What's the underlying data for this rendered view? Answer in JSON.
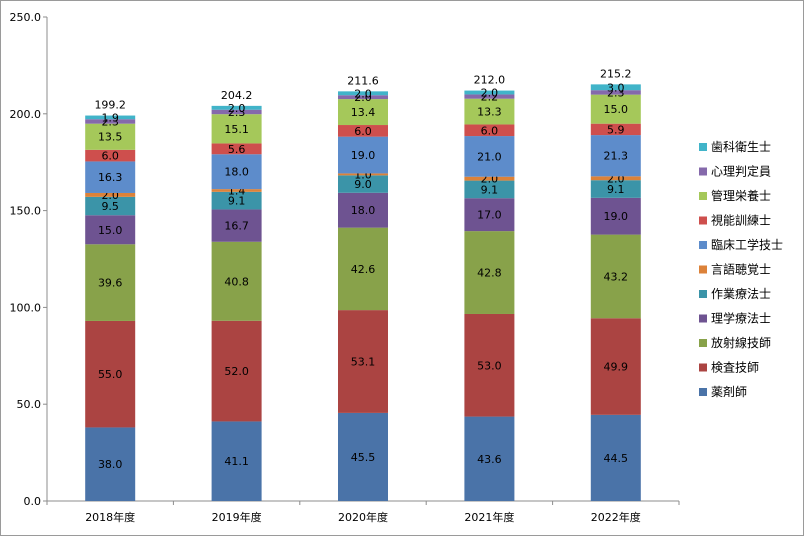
{
  "chart_data": {
    "type": "bar",
    "stacked": true,
    "categories": [
      "2018年度",
      "2019年度",
      "2020年度",
      "2021年度",
      "2022年度"
    ],
    "ylim": [
      0,
      250
    ],
    "yticks": [
      "0.0",
      "50.0",
      "100.0",
      "150.0",
      "200.0",
      "250.0"
    ],
    "grid": false,
    "legend": "right",
    "totals": [
      "199.2",
      "204.2",
      "211.6",
      "212.0",
      "215.2"
    ],
    "series": [
      {
        "name": "薬剤師",
        "color": "#4a73a8",
        "values": [
          38.0,
          41.1,
          45.5,
          43.6,
          44.5
        ],
        "labels": [
          "38.0",
          "41.1",
          "45.5",
          "43.6",
          "44.5"
        ]
      },
      {
        "name": "検査技師",
        "color": "#ab4442",
        "values": [
          55.0,
          52.0,
          53.1,
          53.0,
          49.9
        ],
        "labels": [
          "55.0",
          "52.0",
          "53.1",
          "53.0",
          "49.9"
        ]
      },
      {
        "name": "放射線技師",
        "color": "#88a24a",
        "values": [
          39.6,
          40.8,
          42.6,
          42.8,
          43.2
        ],
        "labels": [
          "39.6",
          "40.8",
          "42.6",
          "42.8",
          "43.2"
        ]
      },
      {
        "name": "理学療法士",
        "color": "#6e5391",
        "values": [
          15.0,
          16.7,
          18.0,
          17.0,
          19.0
        ],
        "labels": [
          "15.0",
          "16.7",
          "18.0",
          "17.0",
          "19.0"
        ]
      },
      {
        "name": "作業療法士",
        "color": "#3b94a8",
        "values": [
          9.5,
          9.1,
          9.0,
          9.1,
          9.1
        ],
        "labels": [
          "9.5",
          "9.1",
          "9.0",
          "9.1",
          "9.1"
        ]
      },
      {
        "name": "言語聴覚士",
        "color": "#dc8239",
        "values": [
          2.0,
          1.4,
          1.0,
          2.0,
          2.0
        ],
        "labels": [
          "2.0",
          "1.4",
          "1.0",
          "2.0",
          "2.0"
        ]
      },
      {
        "name": "臨床工学技士",
        "color": "#5d8ccb",
        "values": [
          16.3,
          18.0,
          19.0,
          21.0,
          21.3
        ],
        "labels": [
          "16.3",
          "18.0",
          "19.0",
          "21.0",
          "21.3"
        ]
      },
      {
        "name": "視能訓練士",
        "color": "#ce4f4d",
        "values": [
          6.0,
          5.6,
          6.0,
          6.0,
          5.9
        ],
        "labels": [
          "6.0",
          "5.6",
          "6.0",
          "6.0",
          "5.9"
        ]
      },
      {
        "name": "管理栄養士",
        "color": "#a5c85a",
        "values": [
          13.5,
          15.1,
          13.4,
          13.3,
          15.0
        ],
        "labels": [
          "13.5",
          "15.1",
          "13.4",
          "13.3",
          "15.0"
        ]
      },
      {
        "name": "心理判定員",
        "color": "#8569ab",
        "values": [
          2.3,
          2.3,
          2.0,
          2.2,
          2.3
        ],
        "labels": [
          "2.3",
          "2.3",
          "2.0",
          "2.2",
          "2.3"
        ]
      },
      {
        "name": "歯科衛生士",
        "color": "#41b4c9",
        "values": [
          1.9,
          2.0,
          2.0,
          2.0,
          3.0
        ],
        "labels": [
          "1.9",
          "2.0",
          "2.0",
          "2.0",
          "3.0"
        ]
      }
    ]
  }
}
